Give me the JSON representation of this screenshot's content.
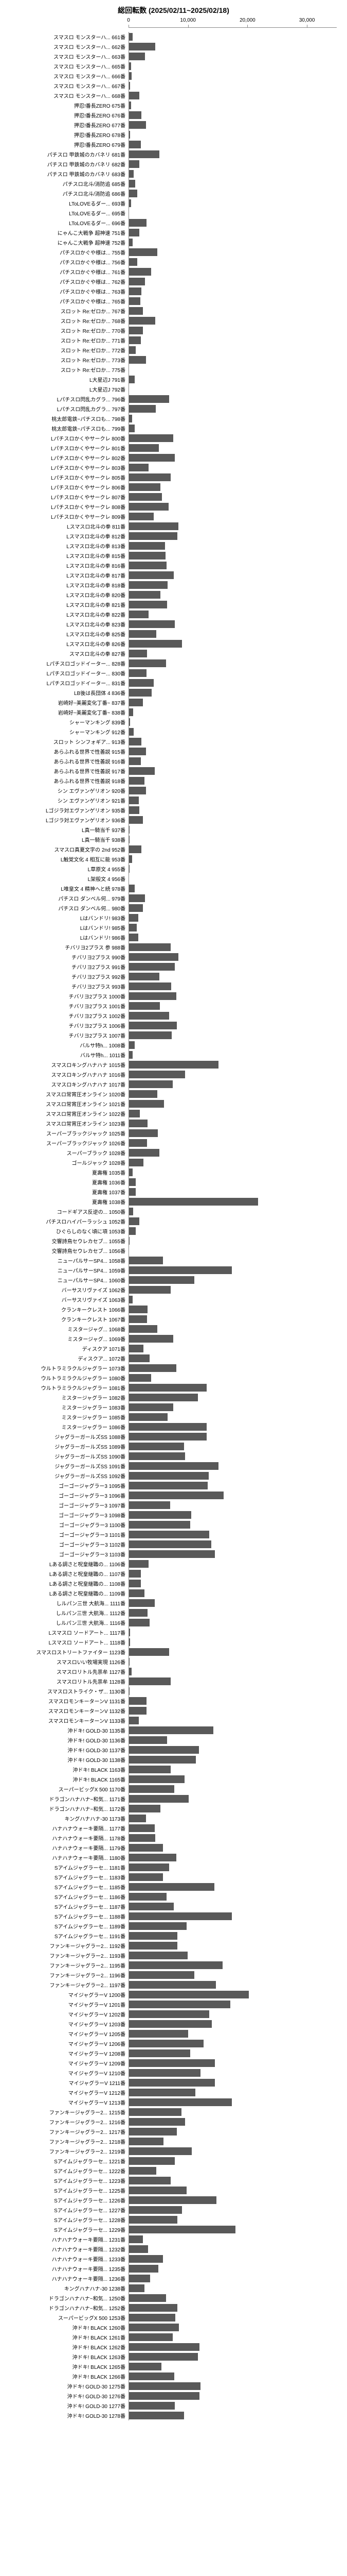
{
  "title": "総回転数 (2025/02/11~2025/02/18)",
  "xlim": [
    0,
    35000
  ],
  "ticks": [
    0,
    10000,
    20000,
    30000
  ],
  "tick_labels": [
    "0",
    "10,000",
    "20,000",
    "30,000"
  ],
  "title_fontsize": 14,
  "label_fontsize": 10,
  "bar_color": "#595959",
  "background_color": "#ffffff",
  "grid_color": "#888888",
  "items": [
    {
      "label": "スマスロ モンスターハ... 661番",
      "value": 700
    },
    {
      "label": "スマスロ モンスターハ... 662番",
      "value": 4500
    },
    {
      "label": "スマスロ モンスターハ... 663番",
      "value": 2800
    },
    {
      "label": "スマスロ モンスターハ... 665番",
      "value": 400
    },
    {
      "label": "スマスロ モンスターハ... 666番",
      "value": 500
    },
    {
      "label": "スマスロ モンスターハ... 667番",
      "value": 300
    },
    {
      "label": "スマスロ モンスターハ... 668番",
      "value": 1800
    },
    {
      "label": "押忍!番長ZERO 675番",
      "value": 400
    },
    {
      "label": "押忍!番長ZERO 676番",
      "value": 2200
    },
    {
      "label": "押忍!番長ZERO 677番",
      "value": 2900
    },
    {
      "label": "押忍!番長ZERO 678番",
      "value": 300
    },
    {
      "label": "押忍!番長ZERO 679番",
      "value": 2100
    },
    {
      "label": "パチスロ 甲鉄城のカバネリ 681番",
      "value": 5200
    },
    {
      "label": "パチスロ 甲鉄城のカバネリ 682番",
      "value": 1800
    },
    {
      "label": "パチスロ 甲鉄城のカバネリ 683番",
      "value": 900
    },
    {
      "label": "パチスロ北斗/消防追 685番",
      "value": 1100
    },
    {
      "label": "パチスロ北斗/消防追 686番",
      "value": 1500
    },
    {
      "label": "LToLOVEるダー... 693番",
      "value": 400
    },
    {
      "label": "LToLOVEるダー... 695番",
      "value": 100
    },
    {
      "label": "LToLOVEるダー... 696番",
      "value": 3000
    },
    {
      "label": "にゃんこ大戦争 超神速 751番",
      "value": 1800
    },
    {
      "label": "にゃんこ大戦争 超神速 752番",
      "value": 700
    },
    {
      "label": "パチスロかぐや様は... 755番",
      "value": 4800
    },
    {
      "label": "パチスロかぐや様は... 756番",
      "value": 1500
    },
    {
      "label": "パチスロかぐや様は... 761番",
      "value": 3800
    },
    {
      "label": "パチスロかぐや様は... 762番",
      "value": 2800
    },
    {
      "label": "パチスロかぐや様は... 763番",
      "value": 2200
    },
    {
      "label": "パチスロかぐや様は... 765番",
      "value": 2000
    },
    {
      "label": "スロット Re:ゼロか... 767番",
      "value": 2400
    },
    {
      "label": "スロット Re:ゼロか... 768番",
      "value": 4500
    },
    {
      "label": "スロット Re:ゼロか... 770番",
      "value": 2400
    },
    {
      "label": "スロット Re:ゼロか... 771番",
      "value": 2100
    },
    {
      "label": "スロット Re:ゼロか... 772番",
      "value": 1200
    },
    {
      "label": "スロット Re:ゼロか... 773番",
      "value": 2900
    },
    {
      "label": "スロット Re:ゼロか... 775番",
      "value": 0
    },
    {
      "label": "L大星辺J 791番",
      "value": 1000
    },
    {
      "label": "L大星辺J 792番",
      "value": 0
    },
    {
      "label": "Lパチスロ閃乱カグラ... 796番",
      "value": 6800
    },
    {
      "label": "Lパチスロ閃乱カグラ... 797番",
      "value": 4600
    },
    {
      "label": "桃太郎電鉄~パチスロも... 798番",
      "value": 600
    },
    {
      "label": "桃太郎電鉄~パチスロも... 799番",
      "value": 1000
    },
    {
      "label": "Lパチスロかくやサークレ 800番",
      "value": 7500
    },
    {
      "label": "Lパチスロかくやサークレ 801番",
      "value": 5100
    },
    {
      "label": "Lパチスロかくやサークレ 802番",
      "value": 7800
    },
    {
      "label": "Lパチスロかくやサークレ 803番",
      "value": 3400
    },
    {
      "label": "Lパチスロかくやサークレ 805番",
      "value": 7100
    },
    {
      "label": "Lパチスロかくやサークレ 806番",
      "value": 5400
    },
    {
      "label": "Lパチスロかくやサークレ 807番",
      "value": 5600
    },
    {
      "label": "Lパチスロかくやサークレ 808番",
      "value": 6700
    },
    {
      "label": "Lパチスロかくやサークレ 809番",
      "value": 4200
    },
    {
      "label": "Lスマスロ北斗の拳 811番",
      "value": 8400
    },
    {
      "label": "Lスマスロ北斗の拳 812番",
      "value": 8200
    },
    {
      "label": "Lスマスロ北斗の拳 813番",
      "value": 6100
    },
    {
      "label": "Lスマスロ北斗の拳 815番",
      "value": 6200
    },
    {
      "label": "Lスマスロ北斗の拳 816番",
      "value": 6400
    },
    {
      "label": "Lスマスロ北斗の拳 817番",
      "value": 7600
    },
    {
      "label": "Lスマスロ北斗の拳 818番",
      "value": 6600
    },
    {
      "label": "Lスマスロ北斗の拳 820番",
      "value": 5400
    },
    {
      "label": "Lスマスロ北斗の拳 821番",
      "value": 6500
    },
    {
      "label": "Lスマスロ北斗の拳 822番",
      "value": 3400
    },
    {
      "label": "Lスマスロ北斗の拳 823番",
      "value": 7800
    },
    {
      "label": "Lスマスロ北斗の拳 825番",
      "value": 4700
    },
    {
      "label": "Lスマスロ北斗の拳 826番",
      "value": 9000
    },
    {
      "label": "スマスロ北斗の拳 827番",
      "value": 3100
    },
    {
      "label": "Lパチスロゴッドイーター... 828番",
      "value": 6300
    },
    {
      "label": "Lパチスロゴッドイーター... 830番",
      "value": 3000
    },
    {
      "label": "Lパチスロゴッドイーター... 831番",
      "value": 4200
    },
    {
      "label": "LB後は長団体 4 836番",
      "value": 3900
    },
    {
      "label": "岩崎好~美麗変化丁番~ 837番",
      "value": 2400
    },
    {
      "label": "岩崎好~美麗変化丁番~ 838番",
      "value": 800
    },
    {
      "label": "シャーマンキング 839番",
      "value": 300
    },
    {
      "label": "シャーマンキング 912番",
      "value": 900
    },
    {
      "label": "スロット シンフォギア... 913番",
      "value": 2200
    },
    {
      "label": "あらふれる世界で性善説 915番",
      "value": 2900
    },
    {
      "label": "あらふれる世界で性善説 916番",
      "value": 2100
    },
    {
      "label": "あらふれる世界で性善説 917番",
      "value": 4400
    },
    {
      "label": "あらふれる世界で性善説 918番",
      "value": 2700
    },
    {
      "label": "シン エヴァンゲリオン 920番",
      "value": 2900
    },
    {
      "label": "シン エヴァンゲリオン 921番",
      "value": 1700
    },
    {
      "label": "Lゴジラ対エヴァンゲリオン 935番",
      "value": 1800
    },
    {
      "label": "Lゴジラ対エヴァンゲリオン 936番",
      "value": 2400
    },
    {
      "label": "L真一騎当千 937番",
      "value": 200
    },
    {
      "label": "L真一騎当千 938番",
      "value": 200
    },
    {
      "label": "スマスロ真夏文字の 2nd 952番",
      "value": 2200
    },
    {
      "label": "L触覚文化 4 相互に能 953番",
      "value": 600
    },
    {
      "label": "L草原文 4 955番",
      "value": 200
    },
    {
      "label": "L架般文 4 956番",
      "value": 100
    },
    {
      "label": "L唯皇文 4 精神へと続 978番",
      "value": 1000
    },
    {
      "label": "パチスロ ダンベル何... 979番",
      "value": 2800
    },
    {
      "label": "パチスロ ダンベル何... 980番",
      "value": 2400
    },
    {
      "label": "Lはバンドリ! 983番",
      "value": 1600
    },
    {
      "label": "Lはバンドリ! 985番",
      "value": 1400
    },
    {
      "label": "Lはバンドリ! 986番",
      "value": 1600
    },
    {
      "label": "チバリヨ2プラス 参 988番",
      "value": 7100
    },
    {
      "label": "チバリヨ2プラス 990番",
      "value": 8400
    },
    {
      "label": "チバリヨ2プラス 991番",
      "value": 7800
    },
    {
      "label": "チバリヨ2プラス 992番",
      "value": 5200
    },
    {
      "label": "チバリヨ2プラス 993番",
      "value": 7200
    },
    {
      "label": "チバリヨ2プラス 1000番",
      "value": 8000
    },
    {
      "label": "チバリヨ2プラス 1001番",
      "value": 5300
    },
    {
      "label": "チバリヨ2プラス 1002番",
      "value": 6800
    },
    {
      "label": "チバリヨ2プラス 1006番",
      "value": 8100
    },
    {
      "label": "チバリヨ2プラス 1007番",
      "value": 7300
    },
    {
      "label": "バルサ特h... 1008番",
      "value": 1000
    },
    {
      "label": "バルサ特h... 1011番",
      "value": 700
    },
    {
      "label": "スマスロキングハナハナ 1015番",
      "value": 15100
    },
    {
      "label": "スマスロキングハナハナ 1016番",
      "value": 9500
    },
    {
      "label": "スマスロキングハナハナ 1017番",
      "value": 7400
    },
    {
      "label": "スマスロ常宵圧オンライン 1020番",
      "value": 4800
    },
    {
      "label": "スマスロ常宵圧オンライン 1021番",
      "value": 6000
    },
    {
      "label": "スマスロ常宵圧オンライン 1022番",
      "value": 1900
    },
    {
      "label": "スマスロ常宵圧オンライン 1023番",
      "value": 3200
    },
    {
      "label": "スーパーブラックジャック 1025番",
      "value": 4900
    },
    {
      "label": "スーパーブラックジャック 1026番",
      "value": 3100
    },
    {
      "label": "スーパーブラック 1028番",
      "value": 5200
    },
    {
      "label": "ゴールジャック 1028番",
      "value": 2500
    },
    {
      "label": "夏壽権 1035番",
      "value": 700
    },
    {
      "label": "夏壽権 1036番",
      "value": 1200
    },
    {
      "label": "夏壽権 1037番",
      "value": 1200
    },
    {
      "label": "夏壽権 1038番",
      "value": 21800
    },
    {
      "label": "コードギアス反逆の... 1050番",
      "value": 800
    },
    {
      "label": "パチスロハイパーラッシュ 1052番",
      "value": 1800
    },
    {
      "label": "ひぐらしのなく頃に項 1053番",
      "value": 1200
    },
    {
      "label": "交響詩鳥セウレカセブ... 1055番",
      "value": 200
    },
    {
      "label": "交響詩鳥セウレカセブ... 1056番",
      "value": 100
    },
    {
      "label": "ニューパルサーSP4... 1058番",
      "value": 5800
    },
    {
      "label": "ニューパルサーSP4... 1059番",
      "value": 17400
    },
    {
      "label": "ニューパルサーSP4... 1060番",
      "value": 11100
    },
    {
      "label": "バーサスリヴァイズ 1062番",
      "value": 7100
    },
    {
      "label": "バーサスリヴァイズ 1063番",
      "value": 700
    },
    {
      "label": "クランキークレスト 1066番",
      "value": 3200
    },
    {
      "label": "クランキークレスト 1067番",
      "value": 3100
    },
    {
      "label": "ミスタージャグ... 1068番",
      "value": 4800
    },
    {
      "label": "ミスタージャグ... 1069番",
      "value": 7500
    },
    {
      "label": "ディスクア 1071番",
      "value": 2500
    },
    {
      "label": "ディスクア... 1072番",
      "value": 3500
    },
    {
      "label": "ウルトラミラクルジャグラー 1073番",
      "value": 8000
    },
    {
      "label": "ウルトラミラクルジャグラー 1080番",
      "value": 3800
    },
    {
      "label": "ウルトラミラクルジャグラー 1081番",
      "value": 13100
    },
    {
      "label": "ミスタージャグラー 1082番",
      "value": 11700
    },
    {
      "label": "ミスタージャグラー 1083番",
      "value": 7500
    },
    {
      "label": "ミスタージャグラー 1085番",
      "value": 6600
    },
    {
      "label": "ミスタージャグラー 1086番",
      "value": 13100
    },
    {
      "label": "ジャグラーガールズSS 1088番",
      "value": 13100
    },
    {
      "label": "ジャグラーガールズSS 1089番",
      "value": 9300
    },
    {
      "label": "ジャグラーガールズSS 1090番",
      "value": 9500
    },
    {
      "label": "ジャグラーガールズSS 1091番",
      "value": 15100
    },
    {
      "label": "ジャグラーガールズSS 1092番",
      "value": 13500
    },
    {
      "label": "ゴーゴージャグラー3 1095番",
      "value": 13300
    },
    {
      "label": "ゴーゴージャグラー3 1096番",
      "value": 16000
    },
    {
      "label": "ゴーゴージャグラー3 1097番",
      "value": 7000
    },
    {
      "label": "ゴーゴージャグラー3 1098番",
      "value": 10500
    },
    {
      "label": "ゴーゴージャグラー3 1100番",
      "value": 10400
    },
    {
      "label": "ゴーゴージャグラー3 1101番",
      "value": 13600
    },
    {
      "label": "ゴーゴージャグラー3 1102番",
      "value": 13900
    },
    {
      "label": "ゴーゴージャグラー3 1103番",
      "value": 14500
    },
    {
      "label": "Lある調さと呪皇継職の... 1106番",
      "value": 3400
    },
    {
      "label": "Lある調さと呪皇継職の... 1107番",
      "value": 2100
    },
    {
      "label": "Lある調さと呪皇継職の... 1108番",
      "value": 2100
    },
    {
      "label": "Lある調さと呪皇継職の... 1109番",
      "value": 2700
    },
    {
      "label": "しルパン三世 大航海... 1111番",
      "value": 4400
    },
    {
      "label": "しルパン三世 大航海... 1112番",
      "value": 3200
    },
    {
      "label": "しルパン三世 大航海... 1116番",
      "value": 3500
    },
    {
      "label": "Lスマスロ ソードアート... 1117番",
      "value": 300
    },
    {
      "label": "Lスマスロ ソードアート... 1118番",
      "value": 300
    },
    {
      "label": "スマスロストリートファイター 1123番",
      "value": 6800
    },
    {
      "label": "スマスロいい牧場実現 1126番",
      "value": 200
    },
    {
      "label": "スマスロリトル先祟牟 1127番",
      "value": 500
    },
    {
      "label": "スマスロリトル先祟牟 1128番",
      "value": 7100
    },
    {
      "label": "スマスロストライク・ザ... 1130番",
      "value": 200
    },
    {
      "label": "スマスロモンキーターンV 1131番",
      "value": 3000
    },
    {
      "label": "スマスロモンキーターンV 1132番",
      "value": 3000
    },
    {
      "label": "スマスロモンキーターンV 1133番",
      "value": 1700
    },
    {
      "label": "沖ドキ! GOLD-30 1135番",
      "value": 14300
    },
    {
      "label": "沖ドキ! GOLD-30 1136番",
      "value": 6500
    },
    {
      "label": "沖ドキ! GOLD-30 1137番",
      "value": 11800
    },
    {
      "label": "沖ドキ! GOLD-30 1138番",
      "value": 11300
    },
    {
      "label": "沖ドキ! BLACK 1163番",
      "value": 7100
    },
    {
      "label": "沖ドキ! BLACK 1165番",
      "value": 9400
    },
    {
      "label": "スーパービッグX 500 1170番",
      "value": 7700
    },
    {
      "label": "ドラゴンハナハナ~和気... 1171番",
      "value": 10100
    },
    {
      "label": "ドラゴンハナハナ~和気... 1172番",
      "value": 5400
    },
    {
      "label": "キングハナハナ-30 1173番",
      "value": 2900
    },
    {
      "label": "ハナハナウォーキ要隔... 1177番",
      "value": 4400
    },
    {
      "label": "ハナハナウォーキ要隔... 1178番",
      "value": 4500
    },
    {
      "label": "ハナハナウォーキ要隔... 1179番",
      "value": 5800
    },
    {
      "label": "ハナハナウォーキ要隔... 1180番",
      "value": 8000
    },
    {
      "label": "Sアイムジャグラーセ... 1181番",
      "value": 6800
    },
    {
      "label": "Sアイムジャグラーセ... 1183番",
      "value": 5800
    },
    {
      "label": "Sアイムジャグラーセ... 1185番",
      "value": 14400
    },
    {
      "label": "Sアイムジャグラーセ... 1186番",
      "value": 6400
    },
    {
      "label": "Sアイムジャグラーセ... 1187番",
      "value": 7600
    },
    {
      "label": "Sアイムジャグラーセ... 1188番",
      "value": 17400
    },
    {
      "label": "Sアイムジャグラーセ... 1189番",
      "value": 9800
    },
    {
      "label": "Sアイムジャグラーセ... 1191番",
      "value": 8200
    },
    {
      "label": "ファンキージャグラー2... 1192番",
      "value": 8200
    },
    {
      "label": "ファンキージャグラー2... 1193番",
      "value": 9900
    },
    {
      "label": "ファンキージャグラー2... 1195番",
      "value": 15800
    },
    {
      "label": "ファンキージャグラー2... 1196番",
      "value": 11100
    },
    {
      "label": "ファンキージャグラー2... 1197番",
      "value": 14700
    },
    {
      "label": "マイジャグラーV 1200番",
      "value": 20200
    },
    {
      "label": "マイジャグラーV 1201番",
      "value": 17100
    },
    {
      "label": "マイジャグラーV 1202番",
      "value": 13600
    },
    {
      "label": "マイジャグラーV 1203番",
      "value": 14000
    },
    {
      "label": "マイジャグラーV 1205番",
      "value": 10000
    },
    {
      "label": "マイジャグラーV 1206番",
      "value": 12600
    },
    {
      "label": "マイジャグラーV 1208番",
      "value": 10400
    },
    {
      "label": "マイジャグラーV 1209番",
      "value": 14500
    },
    {
      "label": "マイジャグラーV 1210番",
      "value": 12100
    },
    {
      "label": "マイジャグラーV 1211番",
      "value": 14500
    },
    {
      "label": "マイジャグラーV 1212番",
      "value": 11200
    },
    {
      "label": "マイジャグラーV 1213番",
      "value": 17400
    },
    {
      "label": "ファンキージャグラー2... 1215番",
      "value": 8900
    },
    {
      "label": "ファンキージャグラー2... 1216番",
      "value": 9500
    },
    {
      "label": "ファンキージャグラー2... 1217番",
      "value": 8100
    },
    {
      "label": "ファンキージャグラー2... 1218番",
      "value": 5900
    },
    {
      "label": "ファンキージャグラー2... 1219番",
      "value": 10600
    },
    {
      "label": "Sアイムジャグラーセ... 1221番",
      "value": 7800
    },
    {
      "label": "Sアイムジャグラーセ... 1222番",
      "value": 4700
    },
    {
      "label": "Sアイムジャグラーセ... 1223番",
      "value": 7100
    },
    {
      "label": "Sアイムジャグラーセ... 1225番",
      "value": 9800
    },
    {
      "label": "Sアイムジャグラーセ... 1226番",
      "value": 14800
    },
    {
      "label": "Sアイムジャグラーセ... 1227番",
      "value": 9000
    },
    {
      "label": "Sアイムジャグラーセ... 1228番",
      "value": 8200
    },
    {
      "label": "Sアイムジャグラーセ... 1229番",
      "value": 18000
    },
    {
      "label": "ハナハナウォーキ要隔... 1231番",
      "value": 2400
    },
    {
      "label": "ハナハナウォーキ要隔... 1232番",
      "value": 3300
    },
    {
      "label": "ハナハナウォーキ要隔... 1233番",
      "value": 5800
    },
    {
      "label": "ハナハナウォーキ要隔... 1235番",
      "value": 5000
    },
    {
      "label": "ハナハナウォーキ要隔... 1236番",
      "value": 3600
    },
    {
      "label": "キングハナハナ-30 1238番",
      "value": 2700
    },
    {
      "label": "ドラゴンハナハナ~和気... 1250番",
      "value": 6300
    },
    {
      "label": "ドラゴンハナハナ~和気... 1252番",
      "value": 8200
    },
    {
      "label": "スーパービッグX 500 1253番",
      "value": 7900
    },
    {
      "label": "沖ドキ! BLACK 1260番",
      "value": 8500
    },
    {
      "label": "沖ドキ! BLACK 1261番",
      "value": 7400
    },
    {
      "label": "沖ドキ! BLACK 1262番",
      "value": 11900
    },
    {
      "label": "沖ドキ! BLACK 1263番",
      "value": 11700
    },
    {
      "label": "沖ドキ! BLACK 1265番",
      "value": 5500
    },
    {
      "label": "沖ドキ! BLACK 1266番",
      "value": 7700
    },
    {
      "label": "沖ドキ! GOLD-30 1275番",
      "value": 12100
    },
    {
      "label": "沖ドキ! GOLD-30 1276番",
      "value": 11900
    },
    {
      "label": "沖ドキ! GOLD-30 1277番",
      "value": 7800
    },
    {
      "label": "沖ドキ! GOLD-30 1278番",
      "value": 9300
    }
  ]
}
